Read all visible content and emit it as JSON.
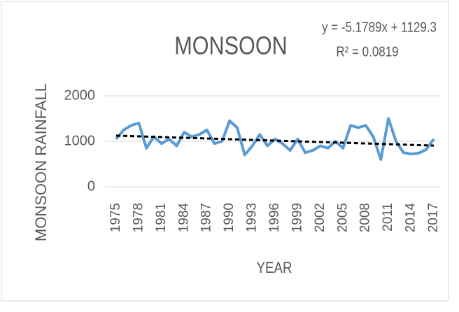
{
  "chart_data": {
    "type": "line",
    "title": "MONSOON",
    "x_label": "YEAR",
    "y_label": "MONSOON RAINFALL",
    "x": [
      1975,
      1976,
      1977,
      1978,
      1979,
      1980,
      1981,
      1982,
      1983,
      1984,
      1985,
      1986,
      1987,
      1988,
      1989,
      1990,
      1991,
      1992,
      1993,
      1994,
      1995,
      1996,
      1997,
      1998,
      1999,
      2000,
      2001,
      2002,
      2003,
      2004,
      2005,
      2006,
      2007,
      2008,
      2009,
      2010,
      2011,
      2012,
      2013,
      2014,
      2015,
      2016,
      2017
    ],
    "series": [
      {
        "name": "MONSOON",
        "color": "#5b9bd5",
        "values": [
          1050,
          1250,
          1350,
          1400,
          850,
          1100,
          950,
          1050,
          900,
          1200,
          1100,
          1150,
          1250,
          950,
          1000,
          1450,
          1300,
          700,
          900,
          1150,
          900,
          1050,
          950,
          800,
          1050,
          750,
          800,
          900,
          850,
          1000,
          850,
          1350,
          1300,
          1350,
          1100,
          600,
          1500,
          1000,
          750,
          720,
          740,
          820,
          1050
        ]
      }
    ],
    "trendline": {
      "slope": -5.1789,
      "intercept": 1129.3,
      "color": "#000000",
      "equation": "y = -5.1789x + 1129.3",
      "r2_label": "R² = 0.0819"
    },
    "xlim": [
      1975,
      2017
    ],
    "xticks": [
      1975,
      1978,
      1981,
      1984,
      1987,
      1990,
      1993,
      1996,
      1999,
      2002,
      2005,
      2008,
      2011,
      2014,
      2017
    ],
    "ylim": [
      0,
      2000
    ],
    "yticks": [
      0,
      1000,
      2000
    ],
    "grid": true
  }
}
